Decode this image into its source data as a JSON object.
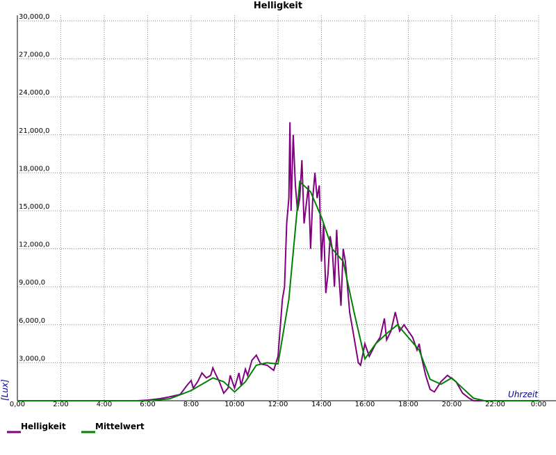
{
  "chart_data": {
    "type": "line",
    "title": "Helligkeit",
    "x_label": "Uhrzeit",
    "y_label": "[Lux]",
    "xlim": [
      0,
      24
    ],
    "ylim": [
      0,
      30000
    ],
    "grid": true,
    "legend": "bottom-left",
    "xticks": [
      {
        "value": 0,
        "label": "0,00"
      },
      {
        "value": 2,
        "label": "2:00"
      },
      {
        "value": 4,
        "label": "4:00"
      },
      {
        "value": 6,
        "label": "6:00"
      },
      {
        "value": 8,
        "label": "8:00"
      },
      {
        "value": 10,
        "label": "10:00"
      },
      {
        "value": 12,
        "label": "12:00"
      },
      {
        "value": 14,
        "label": "14:00"
      },
      {
        "value": 16,
        "label": "16:00"
      },
      {
        "value": 18,
        "label": "18:00"
      },
      {
        "value": 20,
        "label": "20:00"
      },
      {
        "value": 22,
        "label": "22:00"
      },
      {
        "value": 24,
        "label": "0:00"
      }
    ],
    "yticks": [
      {
        "value": 3000,
        "label": "3,000,0"
      },
      {
        "value": 6000,
        "label": "6,000,0"
      },
      {
        "value": 9000,
        "label": "9,000,0"
      },
      {
        "value": 12000,
        "label": "12,000,0"
      },
      {
        "value": 15000,
        "label": "15,000,0"
      },
      {
        "value": 18000,
        "label": "18,000,0"
      },
      {
        "value": 21000,
        "label": "21,000,0"
      },
      {
        "value": 24000,
        "label": "24,000,0"
      },
      {
        "value": 27000,
        "label": "27,000,0"
      },
      {
        "value": 30000,
        "label": "30,000,0"
      }
    ],
    "series": [
      {
        "name": "Helligkeit",
        "color": "#800080",
        "x": [
          0,
          5.5,
          6,
          6.5,
          7,
          7.5,
          7.8,
          8,
          8.1,
          8.3,
          8.5,
          8.7,
          8.9,
          9.0,
          9.1,
          9.3,
          9.5,
          9.7,
          9.8,
          10.0,
          10.2,
          10.3,
          10.5,
          10.6,
          10.8,
          11.0,
          11.2,
          11.5,
          11.8,
          12.0,
          12.2,
          12.3,
          12.4,
          12.5,
          12.55,
          12.6,
          12.7,
          12.8,
          12.9,
          13.0,
          13.1,
          13.2,
          13.4,
          13.5,
          13.6,
          13.7,
          13.8,
          13.9,
          14.0,
          14.1,
          14.2,
          14.3,
          14.4,
          14.5,
          14.6,
          14.7,
          14.8,
          14.9,
          15.0,
          15.1,
          15.3,
          15.5,
          15.7,
          15.8,
          16.0,
          16.2,
          16.5,
          16.7,
          16.9,
          17.0,
          17.2,
          17.4,
          17.6,
          17.8,
          18.0,
          18.2,
          18.4,
          18.5,
          18.6,
          18.8,
          19.0,
          19.2,
          19.5,
          19.8,
          20.2,
          20.5,
          20.8,
          21,
          24
        ],
        "values": [
          0,
          0,
          50,
          150,
          300,
          500,
          1200,
          1600,
          1000,
          1500,
          2200,
          1800,
          2000,
          2600,
          2200,
          1500,
          600,
          1000,
          2000,
          1000,
          2200,
          1200,
          2500,
          2000,
          3200,
          3600,
          2900,
          2800,
          2400,
          3500,
          8000,
          9000,
          14000,
          16000,
          22000,
          15000,
          21000,
          17000,
          15000,
          16000,
          19000,
          14000,
          17000,
          12000,
          16000,
          18000,
          16000,
          17000,
          11000,
          14000,
          8500,
          10000,
          13000,
          12000,
          9000,
          13500,
          10000,
          7500,
          12000,
          11000,
          7000,
          5000,
          3000,
          2800,
          4500,
          3500,
          4500,
          5000,
          6500,
          4800,
          5500,
          7000,
          5500,
          6000,
          5500,
          5000,
          4000,
          4500,
          3500,
          2000,
          900,
          700,
          1500,
          2000,
          1500,
          600,
          200,
          0,
          0
        ]
      },
      {
        "name": "Mittelwert",
        "color": "#008000",
        "x": [
          0,
          6,
          7,
          8,
          9,
          9.5,
          10,
          10.5,
          11,
          11.5,
          12.0,
          12.5,
          13.0,
          13.5,
          14.0,
          14.5,
          15.0,
          15.5,
          16.0,
          16.5,
          17.0,
          17.5,
          18.0,
          18.5,
          19.0,
          19.5,
          20.0,
          20.5,
          21.0,
          21.5,
          24
        ],
        "values": [
          0,
          0,
          150,
          800,
          1800,
          1500,
          700,
          1500,
          2800,
          3000,
          2900,
          8000,
          17300,
          16500,
          14500,
          12000,
          11000,
          7000,
          3300,
          4500,
          5300,
          6000,
          5000,
          4000,
          1700,
          1300,
          1800,
          1000,
          200,
          0,
          0
        ]
      }
    ]
  }
}
